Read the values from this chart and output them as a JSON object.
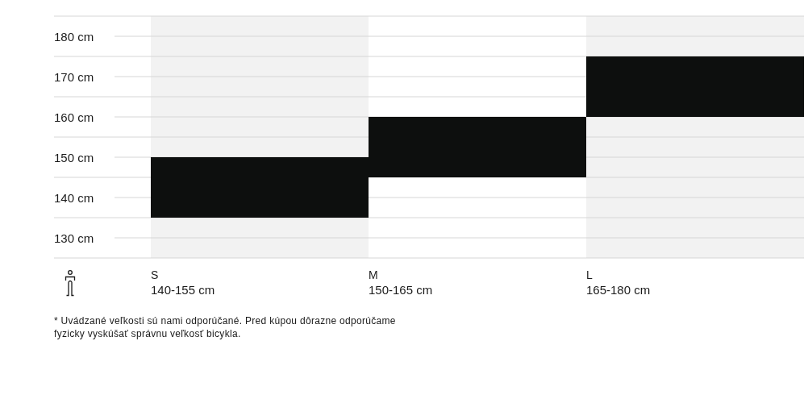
{
  "chart_data": {
    "type": "bar",
    "categories": [
      "S\n140-155 cm",
      "M\n150-165 cm",
      "L\n165-180 cm"
    ],
    "base": [
      135,
      145,
      160
    ],
    "values": [
      15,
      15,
      15
    ],
    "color": "#0d0f0e",
    "ylim": [
      125,
      185
    ],
    "yticks": [
      {
        "value": 125,
        "label": null
      },
      {
        "value": 130,
        "label": "130 cm"
      },
      {
        "value": 135,
        "label": null
      },
      {
        "value": 140,
        "label": "140 cm"
      },
      {
        "value": 145,
        "label": null
      },
      {
        "value": 150,
        "label": "150 cm"
      },
      {
        "value": 155,
        "label": null
      },
      {
        "value": 160,
        "label": "160 cm"
      },
      {
        "value": 165,
        "label": null
      },
      {
        "value": 170,
        "label": "170 cm"
      },
      {
        "value": 175,
        "label": null
      },
      {
        "value": 180,
        "label": "180 cm"
      },
      {
        "value": 185,
        "label": null
      }
    ],
    "grid": true,
    "annotations": [
      "* Uvádzané veľkosti sú nami odporúčané. Pred kúpou dôrazne odporúčame fyzicky vyskúšať správnu veľkosť bicykla."
    ]
  }
}
